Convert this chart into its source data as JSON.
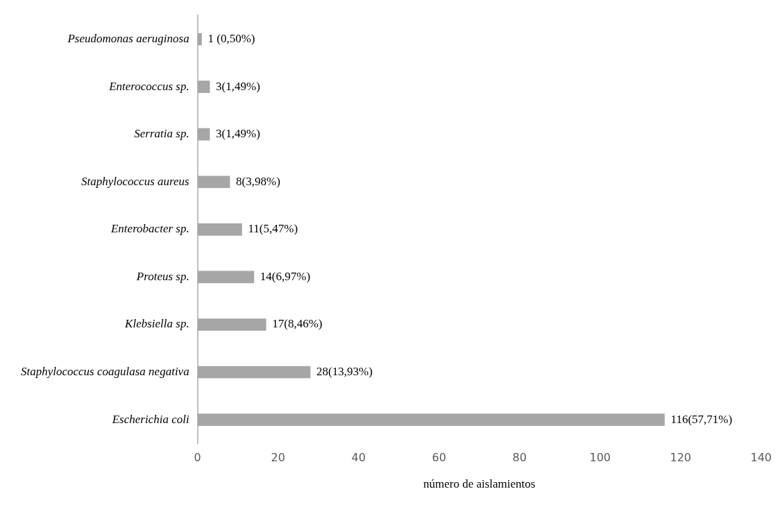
{
  "chart_data": {
    "type": "bar",
    "orientation": "horizontal",
    "xlabel": "número de aislamientos",
    "categories": [
      "Pseudomonas aeruginosa",
      "Enterococcus sp.",
      "Serratia sp.",
      "Staphylococcus aureus",
      "Enterobacter sp.",
      "Proteus sp.",
      "Klebsiella sp.",
      "Staphylococcus coagulasa negativa",
      "Escherichia coli"
    ],
    "values": [
      1,
      3,
      3,
      8,
      11,
      14,
      17,
      28,
      116
    ],
    "value_labels": [
      "1 (0,50%)",
      "3(1,49%)",
      "3(1,49%)",
      "8(3,98%)",
      "11(5,47%)",
      "14(6,97%)",
      "17(8,46%)",
      "28(13,93%)",
      "116(57,71%)"
    ],
    "color": "#a6a6a6",
    "xlim": [
      0,
      140
    ],
    "xticks": [
      0,
      20,
      40,
      60,
      80,
      100,
      120,
      140
    ],
    "grid": false,
    "legend": false
  }
}
